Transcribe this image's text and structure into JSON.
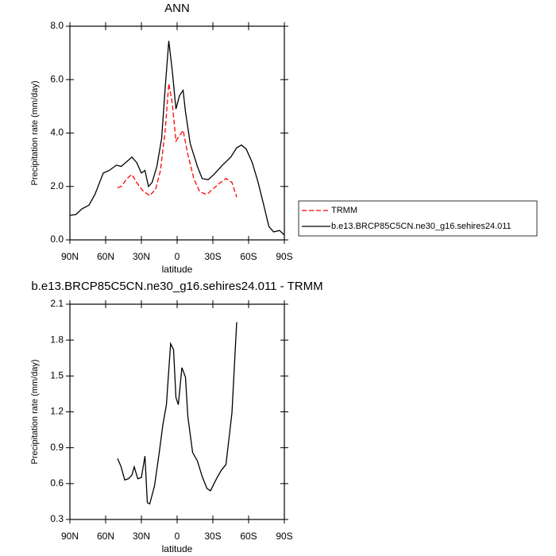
{
  "chart_data": [
    {
      "type": "line",
      "title": "ANN",
      "xlabel": "latitude",
      "ylabel": "Precipitation rate (mm/day)",
      "xlim": [
        90,
        -90
      ],
      "xticks": [
        {
          "value": 90,
          "label": "90N"
        },
        {
          "value": 60,
          "label": "60N"
        },
        {
          "value": 30,
          "label": "30N"
        },
        0,
        {
          "value": -30,
          "label": "30S"
        },
        {
          "value": -60,
          "label": "60S"
        },
        {
          "value": -90,
          "label": "90S"
        }
      ],
      "ylim": [
        0,
        8
      ],
      "yticks": [
        {
          "value": 0,
          "label": "0.0"
        },
        {
          "value": 2,
          "label": "2.0"
        },
        {
          "value": 4,
          "label": "4.0"
        },
        {
          "value": 6,
          "label": "6.0"
        },
        {
          "value": 8,
          "label": "8.0"
        }
      ],
      "legend": "outside-right",
      "series": [
        {
          "name": "TRMM",
          "color": "#ff0000",
          "style": "dashed",
          "x": [
            50,
            47,
            42,
            38,
            34,
            29,
            23,
            18,
            14,
            10,
            7,
            4,
            1,
            -2,
            -5,
            -9,
            -14,
            -19,
            -25,
            -30,
            -35,
            -41,
            -46,
            -50
          ],
          "values": [
            1.95,
            2.0,
            2.3,
            2.45,
            2.15,
            1.85,
            1.65,
            1.9,
            2.6,
            4.1,
            5.85,
            5.1,
            3.7,
            3.9,
            4.1,
            3.2,
            2.3,
            1.8,
            1.7,
            1.9,
            2.1,
            2.3,
            2.15,
            1.6
          ]
        },
        {
          "name": "b.e13.BRCP85C5CN.ne30_g16.sehires24.011",
          "color": "#000000",
          "style": "solid",
          "x": [
            90,
            85,
            80,
            74,
            69,
            62,
            57,
            51,
            47,
            43,
            38,
            34,
            30,
            27,
            24,
            21,
            17,
            13,
            10,
            7,
            4,
            1,
            -2,
            -5,
            -7,
            -11,
            -17,
            -21,
            -26,
            -31,
            -38,
            -45,
            -50,
            -54,
            -58,
            -63,
            -68,
            -73,
            -77,
            -81,
            -86,
            -90
          ],
          "values": [
            0.92,
            0.95,
            1.16,
            1.3,
            1.7,
            2.5,
            2.6,
            2.8,
            2.75,
            2.9,
            3.1,
            2.9,
            2.5,
            2.6,
            2.0,
            2.15,
            2.75,
            3.8,
            5.7,
            7.45,
            6.3,
            4.9,
            5.4,
            5.6,
            4.8,
            3.6,
            2.75,
            2.3,
            2.25,
            2.45,
            2.8,
            3.1,
            3.45,
            3.55,
            3.4,
            2.9,
            2.15,
            1.25,
            0.5,
            0.3,
            0.35,
            0.18
          ]
        }
      ]
    },
    {
      "type": "line",
      "title": "b.e13.BRCP85C5CN.ne30_g16.sehires24.011 - TRMM",
      "xlabel": "latitude",
      "ylabel": "Precipitation rate (mm/day)",
      "xlim": [
        90,
        -90
      ],
      "xticks": [
        {
          "value": 90,
          "label": "90N"
        },
        {
          "value": 60,
          "label": "60N"
        },
        {
          "value": 30,
          "label": "30N"
        },
        0,
        {
          "value": -30,
          "label": "30S"
        },
        {
          "value": -60,
          "label": "60S"
        },
        {
          "value": -90,
          "label": "90S"
        }
      ],
      "ylim": [
        0.3,
        2.1
      ],
      "yticks": [
        0.3,
        0.6,
        0.9,
        1.2,
        1.5,
        1.8,
        2.1
      ],
      "color": "#000000",
      "x": [
        50,
        47,
        44,
        41,
        38,
        36,
        33,
        30,
        27,
        25,
        23,
        19,
        15,
        12,
        9,
        5.5,
        3,
        1,
        -1,
        -4,
        -7,
        -9,
        -13,
        -17,
        -21,
        -25,
        -28,
        -33,
        -37,
        -41,
        -46,
        -50
      ],
      "values": [
        0.81,
        0.74,
        0.63,
        0.64,
        0.67,
        0.74,
        0.64,
        0.65,
        0.83,
        0.44,
        0.43,
        0.58,
        0.86,
        1.09,
        1.26,
        1.77,
        1.72,
        1.32,
        1.26,
        1.57,
        1.49,
        1.16,
        0.86,
        0.79,
        0.66,
        0.56,
        0.54,
        0.64,
        0.71,
        0.76,
        1.19,
        1.95
      ]
    }
  ]
}
